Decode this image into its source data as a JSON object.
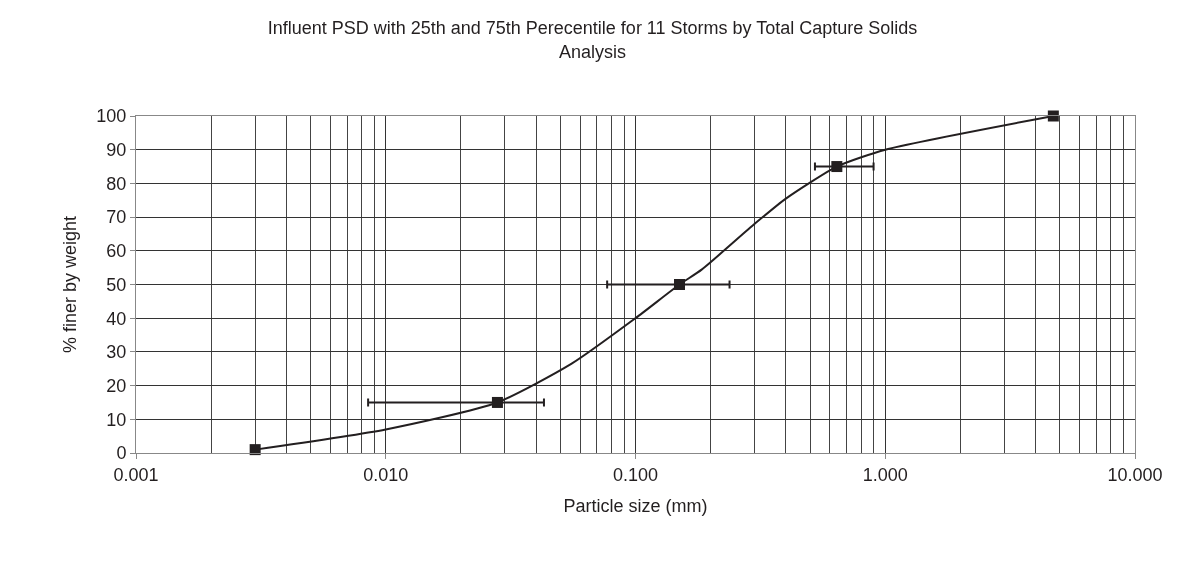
{
  "chart_data": {
    "type": "scatter",
    "title": "Influent PSD with 25th and 75th Perecentile for 11 Storms by Total Capture Solids Analysis",
    "xlabel": "Particle size (mm)",
    "ylabel": "% finer by weight",
    "log": "x",
    "grid": true,
    "xlim": [
      0.001,
      10
    ],
    "xticks": [
      {
        "value": 0.001,
        "label": "0.001"
      },
      {
        "value": 0.01,
        "label": "0.010"
      },
      {
        "value": 0.1,
        "label": "0.100"
      },
      {
        "value": 1,
        "label": "1.000"
      },
      {
        "value": 10,
        "label": "10.000"
      }
    ],
    "ylim": [
      0,
      100
    ],
    "yticks": [
      0,
      10,
      20,
      30,
      40,
      50,
      60,
      70,
      80,
      90,
      100
    ],
    "series": [
      {
        "type": "line",
        "color": "#231f20",
        "marker": "none",
        "line_style": "solid",
        "x": [
          0.003,
          0.01,
          0.028,
          0.0555,
          0.1,
          0.15,
          0.184,
          0.3,
          0.4,
          0.64,
          1.0,
          4.71
        ],
        "values": [
          1,
          7,
          15,
          26.5,
          40,
          50,
          54.4,
          68,
          75.5,
          85,
          90,
          100
        ]
      },
      {
        "color": "#231f20",
        "marker": "square",
        "x": [
          0.003,
          0.028,
          0.15,
          0.64,
          4.71
        ],
        "values": [
          1,
          15,
          50,
          85,
          100
        ],
        "xerrors": [
          null,
          [
            0.0085,
            0.043
          ],
          [
            0.077,
            0.238
          ],
          [
            0.523,
            0.898
          ],
          null
        ]
      }
    ]
  }
}
